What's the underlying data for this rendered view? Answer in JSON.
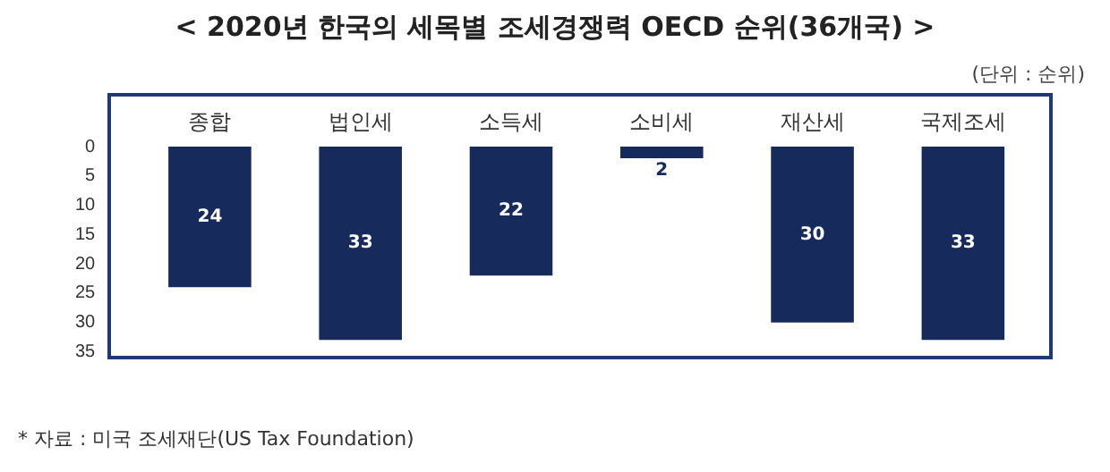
{
  "chart_data": {
    "type": "bar",
    "title": "< 2020년 한국의 세목별 조세경쟁력 OECD 순위(36개국) >",
    "subtitle": "(단위 : 순위)",
    "categories": [
      "종합",
      "법인세",
      "소득세",
      "소비세",
      "재산세",
      "국제조세"
    ],
    "values": [
      24,
      33,
      22,
      2,
      30,
      33
    ],
    "color": "#172a5c",
    "ylim": [
      36,
      0
    ],
    "yticks": [
      0,
      5,
      10,
      15,
      20,
      25,
      30,
      35
    ],
    "grid": false,
    "data_labels": true,
    "annotations": [
      "* 자료 : 미국 조세재단(US Tax Foundation)"
    ]
  }
}
